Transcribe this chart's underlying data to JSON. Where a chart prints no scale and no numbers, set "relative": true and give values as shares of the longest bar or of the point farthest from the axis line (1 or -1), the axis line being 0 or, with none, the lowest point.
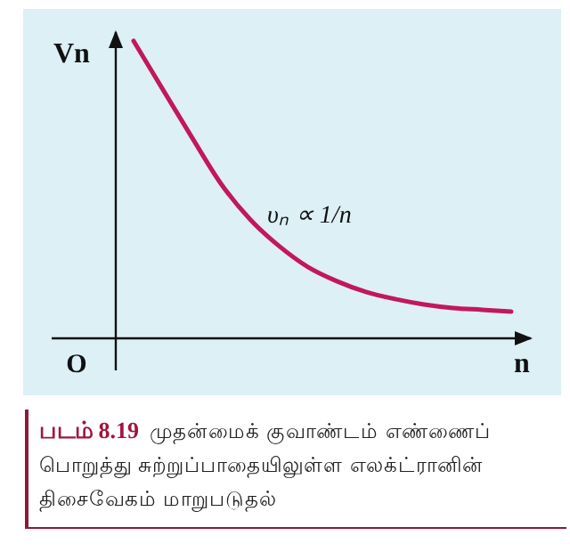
{
  "chart_data": {
    "type": "line",
    "relative": true,
    "ylabel": "Vn",
    "xlabel": "n",
    "categories": [
      null,
      null,
      null,
      null,
      null,
      null,
      null,
      null,
      null,
      null,
      null,
      null,
      null,
      null
    ],
    "series": [
      {
        "color": "#c2185b",
        "values": [
          1,
          0.838,
          0.677,
          0.521,
          0.401,
          0.311,
          0.24,
          0.192,
          0.156,
          0.132,
          0.114,
          0.102,
          0.096,
          0.09
        ]
      }
    ],
    "annotations": [
      "O",
      "υₙ ∝ 1/n",
      "படம் 8.19",
      "முதன்மைக் குவாண்டம் எண்ணைப் பொறுத்து சுற்றுப்பாதையிலுள்ள எலக்ட்ரானின் திசைவேகம் மாறுபடுதல்"
    ],
    "marker": "none",
    "line_style": "solid"
  }
}
